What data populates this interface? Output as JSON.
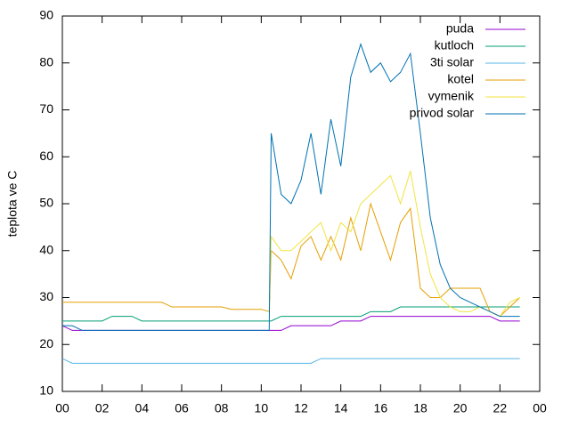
{
  "chart_data": {
    "type": "line",
    "y_label": "teplota ve C",
    "x": [
      0,
      0.5,
      1,
      1.5,
      2,
      2.5,
      3,
      3.5,
      4,
      4.5,
      5,
      5.5,
      6,
      6.5,
      7,
      7.5,
      8,
      8.5,
      9,
      9.5,
      10,
      10.4,
      10.5,
      11,
      11.5,
      12,
      12.5,
      13,
      13.5,
      14,
      14.5,
      15,
      15.5,
      16,
      16.5,
      17,
      17.5,
      18,
      18.5,
      19,
      19.5,
      20,
      20.5,
      21,
      21.5,
      22,
      22.5,
      23
    ],
    "series": [
      {
        "name": "puda",
        "color": "#9400d3",
        "values": [
          24,
          23,
          23,
          23,
          23,
          23,
          23,
          23,
          23,
          23,
          23,
          23,
          23,
          23,
          23,
          23,
          23,
          23,
          23,
          23,
          23,
          23,
          23,
          23,
          24,
          24,
          24,
          24,
          24,
          25,
          25,
          25,
          26,
          26,
          26,
          26,
          26,
          26,
          26,
          26,
          26,
          26,
          26,
          26,
          26,
          25,
          25,
          25
        ]
      },
      {
        "name": "kutloch",
        "color": "#009e73",
        "values": [
          25,
          25,
          25,
          25,
          25,
          26,
          26,
          26,
          25,
          25,
          25,
          25,
          25,
          25,
          25,
          25,
          25,
          25,
          25,
          25,
          25,
          25,
          25,
          26,
          26,
          26,
          26,
          26,
          26,
          26,
          26,
          26,
          27,
          27,
          27,
          28,
          28,
          28,
          28,
          28,
          28,
          28,
          28,
          28,
          28,
          28,
          28,
          28
        ]
      },
      {
        "name": "3ti solar",
        "color": "#56b4e9",
        "values": [
          17,
          16,
          16,
          16,
          16,
          16,
          16,
          16,
          16,
          16,
          16,
          16,
          16,
          16,
          16,
          16,
          16,
          16,
          16,
          16,
          16,
          16,
          16,
          16,
          16,
          16,
          16,
          17,
          17,
          17,
          17,
          17,
          17,
          17,
          17,
          17,
          17,
          17,
          17,
          17,
          17,
          17,
          17,
          17,
          17,
          17,
          17,
          17
        ]
      },
      {
        "name": "kotel",
        "color": "#e69f00",
        "values": [
          29,
          29,
          29,
          29,
          29,
          29,
          29,
          29,
          29,
          29,
          29,
          28,
          28,
          28,
          28,
          28,
          28,
          27.5,
          27.5,
          27.5,
          27.5,
          27,
          40,
          38,
          34,
          41,
          43,
          38,
          43,
          38,
          47,
          40,
          50,
          44,
          38,
          46,
          49,
          32,
          30,
          30,
          32,
          32,
          32,
          32,
          27,
          26,
          28,
          30
        ]
      },
      {
        "name": "vymenik",
        "color": "#f0e442",
        "values": [
          null,
          null,
          null,
          null,
          null,
          null,
          null,
          null,
          null,
          null,
          null,
          null,
          null,
          null,
          null,
          null,
          null,
          null,
          null,
          null,
          null,
          27,
          43,
          40,
          40,
          42,
          44,
          46,
          40,
          46,
          44,
          50,
          52,
          54,
          56,
          50,
          57,
          45,
          35,
          30,
          28,
          27,
          27,
          28,
          27,
          26,
          29,
          30
        ]
      },
      {
        "name": "privod solar",
        "color": "#0072b2",
        "values": [
          24,
          24,
          23,
          23,
          23,
          23,
          23,
          23,
          23,
          23,
          23,
          23,
          23,
          23,
          23,
          23,
          23,
          23,
          23,
          23,
          23,
          23,
          65,
          52,
          50,
          55,
          65,
          52,
          68,
          58,
          77,
          84,
          78,
          80,
          76,
          78,
          82,
          65,
          47,
          37,
          32,
          30,
          29,
          28,
          27,
          26,
          26,
          26
        ]
      }
    ],
    "xlim": [
      0,
      24
    ],
    "xticks": [
      {
        "value": 0,
        "label": "00"
      },
      {
        "value": 2,
        "label": "02"
      },
      {
        "value": 4,
        "label": "04"
      },
      {
        "value": 6,
        "label": "06"
      },
      {
        "value": 8,
        "label": "08"
      },
      {
        "value": 10,
        "label": "10"
      },
      12,
      14,
      16,
      18,
      20,
      22,
      {
        "value": 24,
        "label": "00"
      }
    ],
    "ylim": [
      10,
      90
    ],
    "yticks": [
      10,
      20,
      30,
      40,
      50,
      60,
      70,
      80,
      90
    ],
    "legend": "top-right"
  }
}
